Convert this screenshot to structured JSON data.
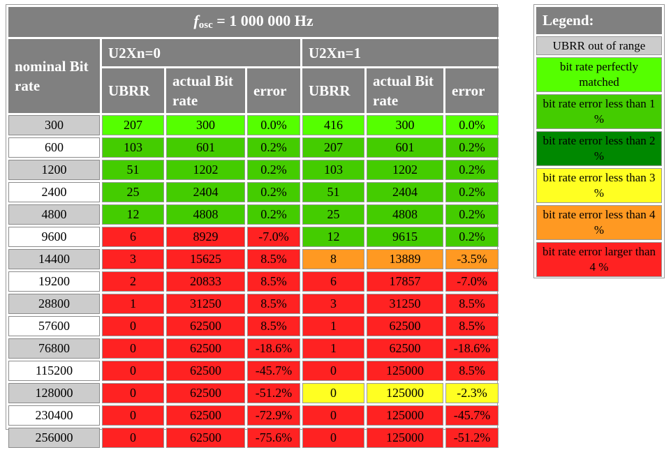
{
  "colors": {
    "header_bg": "#808080",
    "out_of_range": "#cccccc",
    "perfect": "#55ff00",
    "lt1": "#44cc00",
    "lt2": "#008800",
    "lt3": "#ffff22",
    "lt4": "#ff9922",
    "gt4": "#ff2222"
  },
  "title": {
    "f": "f",
    "sub": "osc",
    "rest": " = 1 000 000 Hz"
  },
  "headers": {
    "nominal": "nominal Bit rate",
    "group0": "U2Xn=0",
    "group1": "U2Xn=1",
    "ubrr": "UBRR",
    "actual": "actual Bit rate",
    "error": "error"
  },
  "rows": [
    {
      "nominal": "300",
      "u0": [
        "207",
        "300",
        "0.0%"
      ],
      "c0": "perfect",
      "u1": [
        "416",
        "300",
        "0.0%"
      ],
      "c1": "perfect"
    },
    {
      "nominal": "600",
      "u0": [
        "103",
        "601",
        "0.2%"
      ],
      "c0": "lt1",
      "u1": [
        "207",
        "601",
        "0.2%"
      ],
      "c1": "lt1"
    },
    {
      "nominal": "1200",
      "u0": [
        "51",
        "1202",
        "0.2%"
      ],
      "c0": "lt1",
      "u1": [
        "103",
        "1202",
        "0.2%"
      ],
      "c1": "lt1"
    },
    {
      "nominal": "2400",
      "u0": [
        "25",
        "2404",
        "0.2%"
      ],
      "c0": "lt1",
      "u1": [
        "51",
        "2404",
        "0.2%"
      ],
      "c1": "lt1"
    },
    {
      "nominal": "4800",
      "u0": [
        "12",
        "4808",
        "0.2%"
      ],
      "c0": "lt1",
      "u1": [
        "25",
        "4808",
        "0.2%"
      ],
      "c1": "lt1"
    },
    {
      "nominal": "9600",
      "u0": [
        "6",
        "8929",
        "-7.0%"
      ],
      "c0": "gt4",
      "u1": [
        "12",
        "9615",
        "0.2%"
      ],
      "c1": "lt1"
    },
    {
      "nominal": "14400",
      "u0": [
        "3",
        "15625",
        "8.5%"
      ],
      "c0": "gt4",
      "u1": [
        "8",
        "13889",
        "-3.5%"
      ],
      "c1": "lt4"
    },
    {
      "nominal": "19200",
      "u0": [
        "2",
        "20833",
        "8.5%"
      ],
      "c0": "gt4",
      "u1": [
        "6",
        "17857",
        "-7.0%"
      ],
      "c1": "gt4"
    },
    {
      "nominal": "28800",
      "u0": [
        "1",
        "31250",
        "8.5%"
      ],
      "c0": "gt4",
      "u1": [
        "3",
        "31250",
        "8.5%"
      ],
      "c1": "gt4"
    },
    {
      "nominal": "57600",
      "u0": [
        "0",
        "62500",
        "8.5%"
      ],
      "c0": "gt4",
      "u1": [
        "1",
        "62500",
        "8.5%"
      ],
      "c1": "gt4"
    },
    {
      "nominal": "76800",
      "u0": [
        "0",
        "62500",
        "-18.6%"
      ],
      "c0": "gt4",
      "u1": [
        "1",
        "62500",
        "-18.6%"
      ],
      "c1": "gt4"
    },
    {
      "nominal": "115200",
      "u0": [
        "0",
        "62500",
        "-45.7%"
      ],
      "c0": "gt4",
      "u1": [
        "0",
        "125000",
        "8.5%"
      ],
      "c1": "gt4"
    },
    {
      "nominal": "128000",
      "u0": [
        "0",
        "62500",
        "-51.2%"
      ],
      "c0": "gt4",
      "u1": [
        "0",
        "125000",
        "-2.3%"
      ],
      "c1": "lt3"
    },
    {
      "nominal": "230400",
      "u0": [
        "0",
        "62500",
        "-72.9%"
      ],
      "c0": "gt4",
      "u1": [
        "0",
        "125000",
        "-45.7%"
      ],
      "c1": "gt4"
    },
    {
      "nominal": "256000",
      "u0": [
        "0",
        "62500",
        "-75.6%"
      ],
      "c0": "gt4",
      "u1": [
        "0",
        "125000",
        "-51.2%"
      ],
      "c1": "gt4"
    }
  ],
  "legend": {
    "title": "Legend:",
    "items": [
      {
        "label": "UBRR out of range",
        "color": "out_of_range"
      },
      {
        "label": "bit rate perfectly matched",
        "color": "perfect"
      },
      {
        "label": "bit rate error less than 1 %",
        "color": "lt1"
      },
      {
        "label": "bit rate error less than 2 %",
        "color": "lt2"
      },
      {
        "label": "bit rate error less than 3 %",
        "color": "lt3"
      },
      {
        "label": "bit rate error less than 4 %",
        "color": "lt4"
      },
      {
        "label": "bit rate error larger than 4 %",
        "color": "gt4"
      }
    ]
  }
}
